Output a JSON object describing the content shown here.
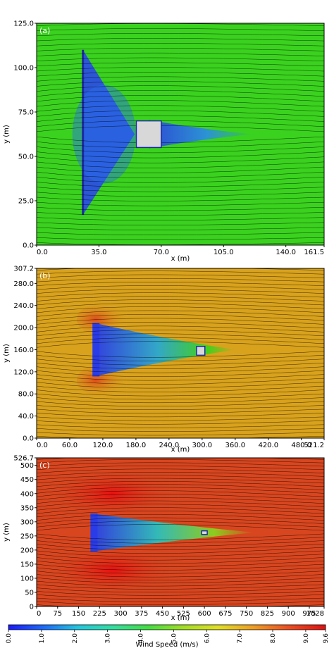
{
  "chart_data": [
    {
      "type": "heatmap",
      "panel_label": "(a)",
      "xlabel": "x (m)",
      "ylabel": "y (m)",
      "xlim": [
        0,
        161.5
      ],
      "ylim": [
        0,
        125.0
      ],
      "xticks": [
        "0.0",
        "35.0",
        "70.0",
        "105.0",
        "140.0",
        "161.5"
      ],
      "xtick_values": [
        0,
        35,
        70,
        105,
        140,
        161.5
      ],
      "yticks": [
        "0.0",
        "25.0",
        "50.0",
        "75.0",
        "100.0",
        "125.0"
      ],
      "ytick_values": [
        0,
        25,
        50,
        75,
        100,
        125
      ],
      "background_color": "#3ad21e",
      "obstacle": {
        "x0": 56,
        "x1": 70,
        "y0": 55,
        "y1": 70,
        "color": "#d8d8d8"
      },
      "wake_color": "#2a4fe0",
      "wall_x": 26,
      "wall_y": [
        17,
        110
      ]
    },
    {
      "type": "heatmap",
      "panel_label": "(b)",
      "xlabel": "x (m)",
      "ylabel": "y (m)",
      "xlim": [
        0,
        521.2
      ],
      "ylim": [
        0,
        307.2
      ],
      "xticks": [
        "0.0",
        "60.0",
        "120.0",
        "180.0",
        "240.0",
        "300.0",
        "360.0",
        "420.0",
        "480.0",
        "521.2"
      ],
      "xtick_values": [
        0,
        60,
        120,
        180,
        240,
        300,
        360,
        420,
        480,
        521.2
      ],
      "yticks": [
        "0.0",
        "40.0",
        "80.0",
        "120.0",
        "160.0",
        "200.0",
        "240.0",
        "280.0",
        "307.2"
      ],
      "ytick_values": [
        0,
        40,
        80,
        120,
        160,
        200,
        240,
        280,
        307.2
      ],
      "background_color": "#d9a21c",
      "obstacle": {
        "x0": 290,
        "x1": 305,
        "y0": 150,
        "y1": 166,
        "color": "#d8d8d8"
      },
      "wake_color": "#2a4fe0"
    },
    {
      "type": "heatmap",
      "panel_label": "(c)",
      "xlabel": "x (m)",
      "ylabel": "y (m)",
      "xlim": [
        0,
        1028
      ],
      "ylim": [
        0,
        526.7
      ],
      "xticks": [
        "0",
        "75",
        "150",
        "225",
        "300",
        "375",
        "450",
        "525",
        "600",
        "675",
        "750",
        "825",
        "900",
        "975",
        "1028"
      ],
      "xtick_values": [
        0,
        75,
        150,
        225,
        300,
        375,
        450,
        525,
        600,
        675,
        750,
        825,
        900,
        975,
        1028
      ],
      "yticks": [
        "0",
        "50",
        "100",
        "150",
        "200",
        "250",
        "300",
        "350",
        "400",
        "450",
        "500",
        "526.7"
      ],
      "ytick_values": [
        0,
        50,
        100,
        150,
        200,
        250,
        300,
        350,
        400,
        450,
        500,
        526.7
      ],
      "background_color": "#d8461f",
      "obstacle": {
        "x0": 590,
        "x1": 610,
        "y0": 255,
        "y1": 268,
        "color": "#d8d8d8"
      },
      "wake_color": "#2a4fe0"
    }
  ],
  "colorbar": {
    "label": "Wind Speed (m/s)",
    "min": 0.0,
    "max": 9.6,
    "ticks": [
      "0.0",
      "1.0",
      "2.0",
      "3.0",
      "4.0",
      "5.0",
      "6.0",
      "7.0",
      "8.0",
      "9.0",
      "9.6"
    ],
    "tick_values": [
      0,
      1,
      2,
      3,
      4,
      5,
      6,
      7,
      8,
      9,
      9.6
    ],
    "colors": [
      "#1a1aff",
      "#1a6aff",
      "#20c8e0",
      "#30e0a0",
      "#40e040",
      "#a0e020",
      "#e0e020",
      "#f0a020",
      "#f05020",
      "#e01010"
    ]
  }
}
